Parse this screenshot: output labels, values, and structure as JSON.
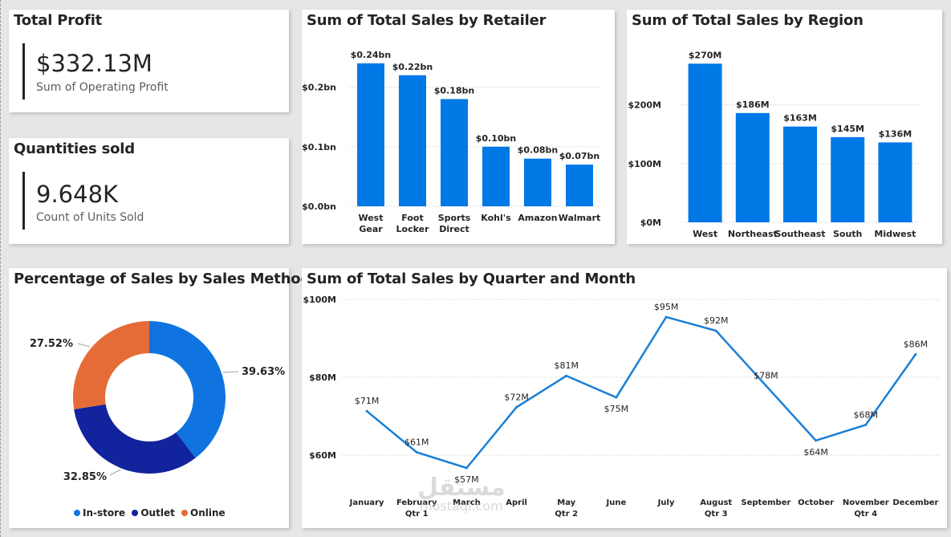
{
  "kpis": {
    "profit": {
      "title": "Total Profit",
      "value": "$332.13M",
      "subtitle": "Sum of Operating Profit"
    },
    "quantity": {
      "title": "Quantities sold",
      "value": "9.648K",
      "subtitle": "Count of Units Sold"
    }
  },
  "colors": {
    "bar": "#0078e6",
    "line": "#1a7fd6",
    "in_store": "#0f74e0",
    "outlet": "#12239e",
    "online": "#e66c37"
  },
  "watermark": {
    "arabic": "مستقل",
    "latin": "mostaql.com"
  },
  "chart_data": [
    {
      "type": "bar",
      "title": "Sum of Total Sales by Retailer",
      "categories": [
        [
          "West",
          "Gear"
        ],
        [
          "Foot",
          "Locker"
        ],
        [
          "Sports",
          "Direct"
        ],
        [
          "Kohl's"
        ],
        [
          "Amazon"
        ],
        [
          "Walmart"
        ]
      ],
      "values": [
        0.24,
        0.22,
        0.18,
        0.1,
        0.08,
        0.07
      ],
      "data_labels": [
        "$0.24bn",
        "$0.22bn",
        "$0.18bn",
        "$0.10bn",
        "$0.08bn",
        "$0.07bn"
      ],
      "yticks": [
        0,
        0.1,
        0.2
      ],
      "ytick_labels": [
        "$0.0bn",
        "$0.1bn",
        "$0.2bn"
      ],
      "ylim": [
        0,
        0.25
      ],
      "grid": true
    },
    {
      "type": "bar",
      "title": "Sum of Total Sales by Region",
      "categories": [
        [
          "West"
        ],
        [
          "Northeast"
        ],
        [
          "Southeast"
        ],
        [
          "South"
        ],
        [
          "Midwest"
        ]
      ],
      "values": [
        270,
        186,
        163,
        145,
        136
      ],
      "data_labels": [
        "$270M",
        "$186M",
        "$163M",
        "$145M",
        "$136M"
      ],
      "yticks": [
        0,
        100,
        200
      ],
      "ytick_labels": [
        "$0M",
        "$100M",
        "$200M"
      ],
      "ylim": [
        0,
        280
      ],
      "grid": true
    },
    {
      "type": "pie",
      "title": "Percentage of Sales by Sales Method",
      "labels": [
        "In-store",
        "Outlet",
        "Online"
      ],
      "values": [
        39.63,
        32.85,
        27.52
      ],
      "data_labels": [
        "39.63%",
        "32.85%",
        "27.52%"
      ],
      "legend": "bottom"
    },
    {
      "type": "line",
      "title": "Sum of Total Sales by Quarter and Month",
      "x": [
        "January",
        "February",
        "March",
        "April",
        "May",
        "June",
        "July",
        "August",
        "September",
        "October",
        "November",
        "December"
      ],
      "quarters": [
        {
          "label": "Qtr 1",
          "months": [
            0,
            2
          ]
        },
        {
          "label": "Qtr 2",
          "months": [
            3,
            5
          ]
        },
        {
          "label": "Qtr 3",
          "months": [
            6,
            8
          ]
        },
        {
          "label": "Qtr 4",
          "months": [
            9,
            11
          ]
        }
      ],
      "values": [
        71.5,
        61,
        57,
        72.5,
        80.5,
        75,
        95.5,
        92,
        78,
        64,
        68,
        86
      ],
      "data_labels": [
        "$71M",
        "$61M",
        "$57M",
        "$72M",
        "$81M",
        "$75M",
        "$95M",
        "$92M",
        "$78M",
        "$64M",
        "$68M",
        "$86M"
      ],
      "yticks": [
        60,
        80,
        100
      ],
      "ytick_labels": [
        "$60M",
        "$80M",
        "$100M"
      ],
      "ylim": [
        57,
        100
      ],
      "grid": true
    }
  ]
}
